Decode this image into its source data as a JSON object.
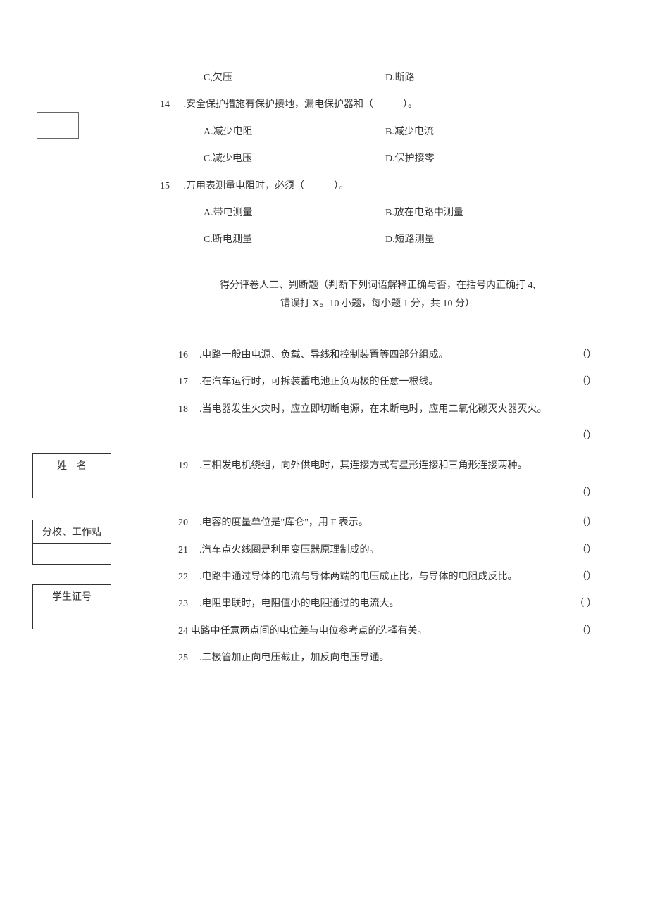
{
  "colors": {
    "background": "#ffffff",
    "text": "#333333",
    "border": "#333333"
  },
  "typography": {
    "body_fontsize": 14,
    "line_height": 1.6
  },
  "sidebar": {
    "name_label": "姓　名",
    "branch_label": "分校、工作站",
    "studentid_label": "学生证号"
  },
  "mcq_options_13": {
    "c": "C,欠压",
    "d": "D.断路"
  },
  "mcq_14": {
    "num": "14",
    "text": ".安全保护措施有保护接地，漏电保护器和（　　　）。",
    "opt_a": "A.减少电阻",
    "opt_b": "B.减少电流",
    "opt_c": "C.减少电压",
    "opt_d": "D.保护接零"
  },
  "mcq_15": {
    "num": "15",
    "text": ".万用表测量电阻时，必须（　　　）。",
    "opt_a": "A.带电测量",
    "opt_b": "B.放在电路中测量",
    "opt_c": "C.断电测量",
    "opt_d": "D.短路测量"
  },
  "section2": {
    "prefix": "得分评卷人",
    "title": "二、判断题（判断下列词语解释正确与否，在括号内正确打 4,",
    "subtitle": "错误打 X。10 小题，每小题 1 分，共 10 分）"
  },
  "judges": [
    {
      "num": "16",
      "text": ".电路一般由电源、负载、导线和控制装置等四部分组成。",
      "mark": "（）"
    },
    {
      "num": "17",
      "text": ".在汽车运行时，可拆装蓄电池正负两极的任意一根线。",
      "mark": "（）"
    },
    {
      "num": "18",
      "text": ".当电器发生火灾时，应立即切断电源，在未断电时，应用二氧化碳灭火器灭火。",
      "mark": ""
    },
    {
      "num": "",
      "text": "",
      "mark": "（）",
      "standalone": true
    },
    {
      "num": "19",
      "text": ".三相发电机绕组，向外供电时，其连接方式有星形连接和三角形连接两种。",
      "mark": ""
    },
    {
      "num": "",
      "text": "",
      "mark": "（）",
      "standalone": true
    },
    {
      "num": "20",
      "text": ".电容的度量单位是\"库仑\"，用 F 表示。",
      "mark": "（）"
    },
    {
      "num": "21",
      "text": ".汽车点火线圈是利用变压器原理制成的。",
      "mark": "（）"
    },
    {
      "num": "22",
      "text": ".电路中通过导体的电流与导体两端的电压成正比，与导体的电阻成反比。",
      "mark": "（）"
    },
    {
      "num": "23",
      "text": ".电阻串联时，电阻值小的电阻通过的电流大。",
      "mark": "（ ）"
    },
    {
      "num": "24",
      "text": "电路中任意两点间的电位差与电位参考点的选择有关。",
      "mark": "（）",
      "nospace": true
    },
    {
      "num": "25",
      "text": ".二极管加正向电压截止，加反向电压导通。",
      "mark": ""
    }
  ]
}
